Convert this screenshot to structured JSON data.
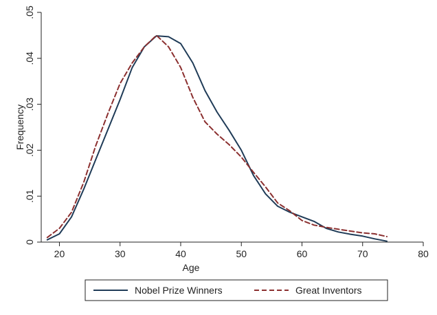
{
  "chart_data": {
    "type": "line",
    "xlabel": "Age",
    "ylabel": "Frequency",
    "xlim": [
      17,
      80
    ],
    "ylim": [
      0,
      0.05
    ],
    "x_ticks": [
      20,
      30,
      40,
      50,
      60,
      70,
      80
    ],
    "x_tick_labels": [
      "20",
      "30",
      "40",
      "50",
      "60",
      "70",
      "80"
    ],
    "y_ticks": [
      0,
      0.01,
      0.02,
      0.03,
      0.04,
      0.05
    ],
    "y_tick_labels": [
      "0",
      ".01",
      ".02",
      ".03",
      ".04",
      ".05"
    ],
    "grid": false,
    "legend_position": "bottom",
    "series": [
      {
        "name": "Nobel Prize Winners",
        "color": "#1f3b57",
        "style": "solid",
        "points": [
          [
            18,
            0.0005
          ],
          [
            20,
            0.0018
          ],
          [
            22,
            0.0055
          ],
          [
            24,
            0.0115
          ],
          [
            26,
            0.018
          ],
          [
            28,
            0.0245
          ],
          [
            30,
            0.031
          ],
          [
            32,
            0.038
          ],
          [
            34,
            0.0425
          ],
          [
            36,
            0.0449
          ],
          [
            38,
            0.0447
          ],
          [
            40,
            0.0432
          ],
          [
            42,
            0.039
          ],
          [
            44,
            0.033
          ],
          [
            46,
            0.0283
          ],
          [
            48,
            0.0243
          ],
          [
            50,
            0.02
          ],
          [
            52,
            0.0145
          ],
          [
            54,
            0.0105
          ],
          [
            56,
            0.0078
          ],
          [
            58,
            0.0065
          ],
          [
            60,
            0.0055
          ],
          [
            62,
            0.0045
          ],
          [
            64,
            0.003
          ],
          [
            66,
            0.0022
          ],
          [
            68,
            0.0017
          ],
          [
            70,
            0.0013
          ],
          [
            72,
            0.0007
          ],
          [
            74,
            0.0002
          ]
        ]
      },
      {
        "name": "Great Inventors",
        "color": "#8b2f2f",
        "style": "dashed",
        "points": [
          [
            18,
            0.001
          ],
          [
            20,
            0.003
          ],
          [
            22,
            0.0065
          ],
          [
            24,
            0.013
          ],
          [
            26,
            0.021
          ],
          [
            28,
            0.028
          ],
          [
            30,
            0.0345
          ],
          [
            32,
            0.039
          ],
          [
            34,
            0.0425
          ],
          [
            36,
            0.045
          ],
          [
            38,
            0.0425
          ],
          [
            40,
            0.038
          ],
          [
            42,
            0.0315
          ],
          [
            44,
            0.0262
          ],
          [
            46,
            0.0235
          ],
          [
            48,
            0.0212
          ],
          [
            50,
            0.0185
          ],
          [
            52,
            0.0152
          ],
          [
            54,
            0.012
          ],
          [
            56,
            0.0085
          ],
          [
            58,
            0.0068
          ],
          [
            60,
            0.0047
          ],
          [
            62,
            0.0037
          ],
          [
            64,
            0.0032
          ],
          [
            66,
            0.0028
          ],
          [
            68,
            0.0024
          ],
          [
            70,
            0.002
          ],
          [
            72,
            0.0018
          ],
          [
            74,
            0.0012
          ]
        ]
      }
    ]
  }
}
